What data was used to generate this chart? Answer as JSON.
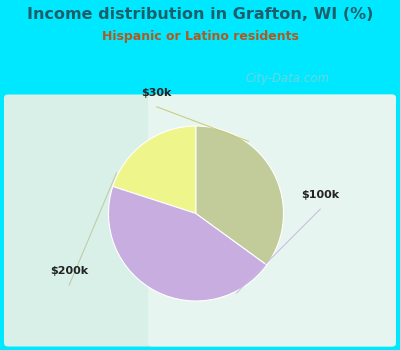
{
  "title": "Income distribution in Grafton, WI (%)",
  "subtitle": "Hispanic or Latino residents",
  "slices": [
    {
      "label": "$30k",
      "value": 20,
      "color": "#eef58a"
    },
    {
      "label": "$100k",
      "value": 45,
      "color": "#c8aee0"
    },
    {
      "label": "$200k",
      "value": 35,
      "color": "#c2cc9a"
    }
  ],
  "startangle": 90,
  "bg_outer": "#00e8ff",
  "bg_inner_top": "#e0f5ee",
  "bg_inner_bottom": "#f8fffe",
  "title_color": "#1a5f6a",
  "subtitle_color": "#b05820",
  "watermark": "City-Data.com",
  "label_color": "#222222",
  "line_color": "#c8b8d8",
  "line_color_30k": "#d8d870",
  "line_color_200k": "#c8d8b0"
}
